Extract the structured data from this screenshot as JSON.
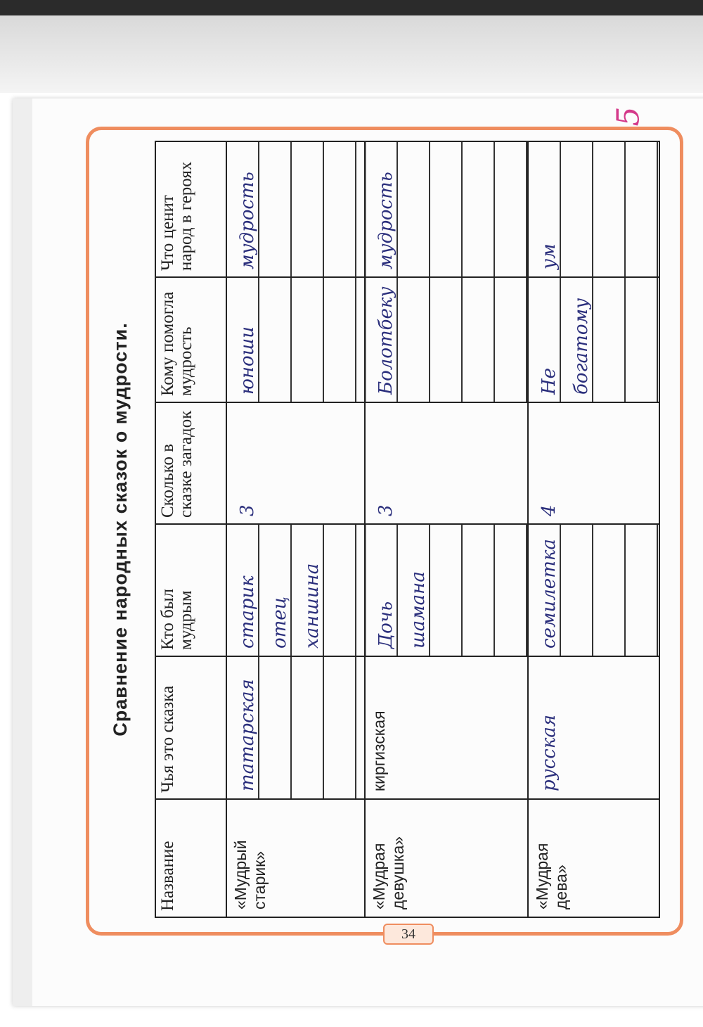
{
  "title": "Сравнение народных сказок о мудрости.",
  "page_number": "34",
  "grade_mark": "5",
  "colors": {
    "frame": "#ef8d5f",
    "ink_blue": "#2b2f7c",
    "ink_pink": "#d43a8a"
  },
  "table": {
    "headers": [
      "Название",
      "Чья это сказка",
      "Кто был мудрым",
      "Сколько в сказке загадок",
      "Кому помогла мудрость",
      "Что ценит народ в героях"
    ],
    "rows": [
      {
        "name": "«Мудрый старик»",
        "whose": "татарская",
        "who": "старик отец ханшина",
        "riddles": "3",
        "helped": "юноши",
        "values": "мудрость"
      },
      {
        "name": "«Мудрая девушка»",
        "whose": "киргизская",
        "who": "Дочь шамана",
        "riddles": "3",
        "helped": "Болотбеку",
        "values": "мудрость"
      },
      {
        "name": "«Мудрая дева»",
        "whose": "русская",
        "who": "семилетка",
        "riddles": "4",
        "helped": "Не богатому",
        "values": "ум"
      }
    ]
  }
}
